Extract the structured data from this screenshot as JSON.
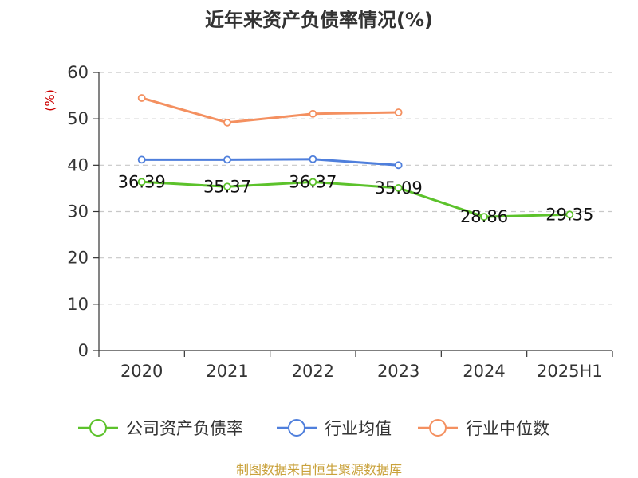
{
  "chart_data": {
    "type": "line",
    "title": "近年来资产负债率情况(%)",
    "ylabel": "(%)",
    "xlabel": "",
    "categories": [
      "2020",
      "2021",
      "2022",
      "2023",
      "2024",
      "2025H1"
    ],
    "ylim": [
      0,
      60
    ],
    "yticks": [
      0,
      10,
      20,
      30,
      40,
      50,
      60
    ],
    "grid": true,
    "legend_position": "bottom",
    "series": [
      {
        "name": "公司资产负债率",
        "color": "#5cc22b",
        "values": [
          36.39,
          35.37,
          36.37,
          35.09,
          28.86,
          29.35
        ],
        "labels": [
          "36.39",
          "35.37",
          "36.37",
          "35.09",
          "28.86",
          "29.35"
        ]
      },
      {
        "name": "行业均值",
        "color": "#4f7fdc",
        "values": [
          41.2,
          41.2,
          41.3,
          40.0,
          null,
          null
        ]
      },
      {
        "name": "行业中位数",
        "color": "#f49060",
        "values": [
          54.5,
          49.2,
          51.1,
          51.4,
          null,
          null
        ]
      }
    ]
  },
  "ylabel_color": "#cc0000",
  "source": {
    "text": "制图数据来自恒生聚源数据库",
    "color": "#c9a13a"
  }
}
